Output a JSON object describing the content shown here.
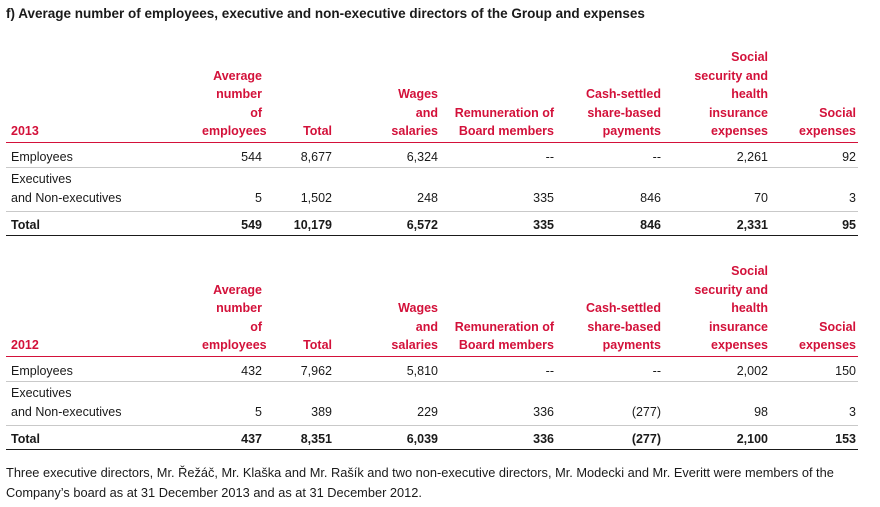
{
  "heading": "f)  Average number of employees, executive and non-executive directors of the Group and expenses",
  "columns": [
    "Average number of employees",
    "Total",
    "Wages and salaries",
    "Remuneration of Board members",
    "Cash-settled share-based payments",
    "Social security and health insurance expenses",
    "Social expenses"
  ],
  "tables": [
    {
      "year": "2013",
      "rows": [
        {
          "label": "Employees",
          "cells": [
            "544",
            "8,677",
            "6,324",
            "--",
            "--",
            "2,261",
            "92"
          ]
        },
        {
          "label_line1": "Executives",
          "label_line2": "and Non-executives",
          "cells": [
            "5",
            "1,502",
            "248",
            "335",
            "846",
            "70",
            "3"
          ]
        },
        {
          "label": "Total",
          "cells": [
            "549",
            "10,179",
            "6,572",
            "335",
            "846",
            "2,331",
            "95"
          ]
        }
      ]
    },
    {
      "year": "2012",
      "rows": [
        {
          "label": "Employees",
          "cells": [
            "432",
            "7,962",
            "5,810",
            "--",
            "--",
            "2,002",
            "150"
          ]
        },
        {
          "label_line1": "Executives",
          "label_line2": "and Non-executives",
          "cells": [
            "5",
            "389",
            "229",
            "336",
            "(277)",
            "98",
            "3"
          ]
        },
        {
          "label": "Total",
          "cells": [
            "437",
            "8,351",
            "6,039",
            "336",
            "(277)",
            "2,100",
            "153"
          ]
        }
      ]
    }
  ],
  "footnote": "Three executive directors, Mr. Řežáč, Mr. Klaška and Mr. Rašík and two non-executive directors, Mr. Modecki and Mr. Everitt were members of the Company’s board as at 31 December 2013 and as at 31 December 2012."
}
